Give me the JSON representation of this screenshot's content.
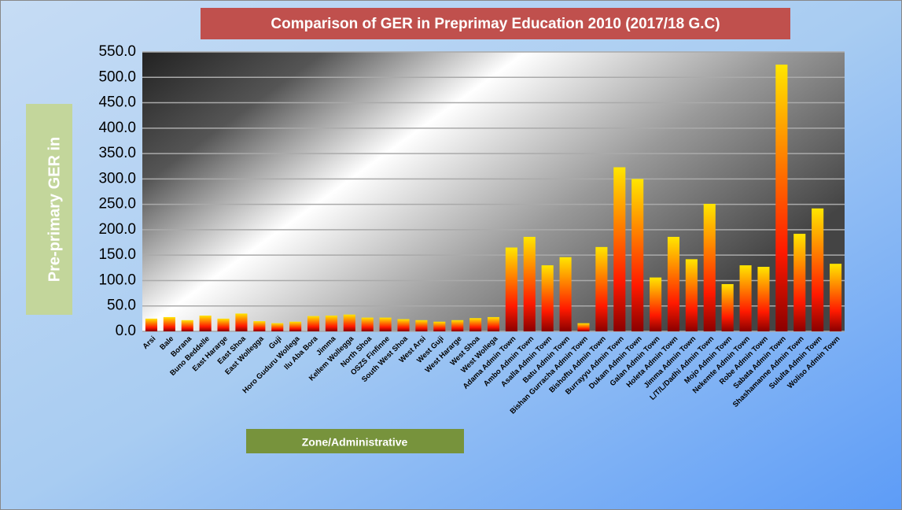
{
  "chart_data": {
    "type": "bar",
    "title": "Comparison of GER in Preprimay Education 2010 (2017/18 G.C)",
    "y_label": "Pre-primary GER  in",
    "x_label": "Zone/Administrative",
    "categories": [
      "Arsi",
      "Bale",
      "Borana",
      "Buno Beddelle",
      "East Hararge",
      "East Shoa",
      "East Wollegga",
      "Guji",
      "Horo Guduru Wollega",
      "Ilu Aba Bora",
      "Jimma",
      "Kellem Wollegga",
      "North Shoa",
      "OSZS Finfinne",
      "South West Shoa",
      "West Arsi",
      "West Guji",
      "West Hararge",
      "West Shoa",
      "West Wollega",
      "Adama Admin Town",
      "Ambo Admin Town",
      "Asalla Admin Town",
      "Batu Admin Town",
      "Bishan Gurracha Admin Town",
      "Bishoftu Admin Town",
      "Burrayyu Admin Town",
      "Dukam Admin Town",
      "Galan Admin Town",
      "Holeta Admin Town",
      "Jimma Admin Town",
      "L/T/L/Dadhi Admin Town",
      "Mojo Admin Town",
      "Nekemte Admin Town",
      "Robe Admin Town",
      "Sabata Admin Town",
      "Shashamanne Admin Town",
      "Sululta Admin Town",
      "Woliso Admin Town"
    ],
    "values": [
      25,
      28,
      22,
      31,
      25,
      35,
      20,
      16,
      19,
      30,
      31,
      33,
      27,
      27,
      24,
      22,
      19,
      22,
      26,
      28,
      165,
      186,
      130,
      146,
      16,
      166,
      323,
      300,
      106,
      186,
      142,
      251,
      93,
      130,
      127,
      525,
      192,
      242,
      133
    ],
    "colors": [
      "#ffe600",
      "#ff1a00"
    ],
    "ylim": [
      0,
      550
    ],
    "yticks": [
      {
        "value": 0,
        "label": "0.0"
      },
      {
        "value": 50,
        "label": "50.0"
      },
      {
        "value": 100,
        "label": "100.0"
      },
      {
        "value": 150,
        "label": "150.0"
      },
      {
        "value": 200,
        "label": "200.0"
      },
      {
        "value": 250,
        "label": "250.0"
      },
      {
        "value": 300,
        "label": "300.0"
      },
      {
        "value": 350,
        "label": "350.0"
      },
      {
        "value": 400,
        "label": "400.0"
      },
      {
        "value": 450,
        "label": "450.0"
      },
      {
        "value": 500,
        "label": "500.0"
      },
      {
        "value": 550,
        "label": "550.0"
      }
    ],
    "grid": true
  }
}
